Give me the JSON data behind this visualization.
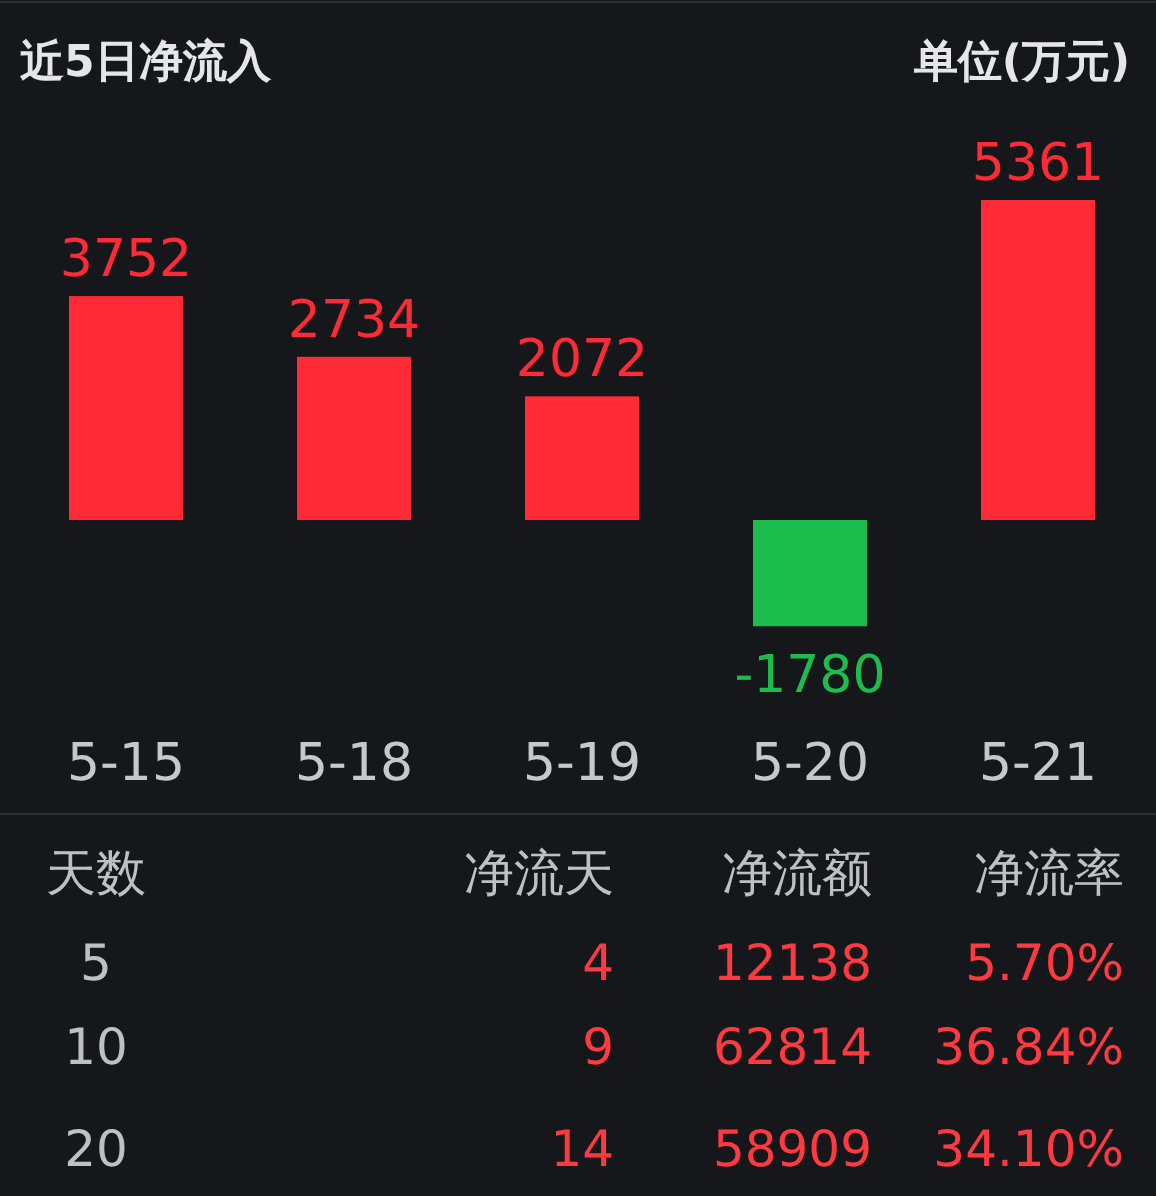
{
  "chart_data": {
    "type": "bar",
    "title": "近5日净流入",
    "ylabel": "单位(万元)",
    "categories": [
      "5-15",
      "5-18",
      "5-19",
      "5-20",
      "5-21"
    ],
    "values": [
      3752,
      2734,
      2072,
      -1780,
      5361
    ],
    "colors": [
      "#fe2a36",
      "#fe2a36",
      "#fe2a36",
      "#1cbd4d",
      "#fe2a36"
    ],
    "data_labels": true,
    "annotations": [
      "天数",
      "净流天",
      "净流额",
      "净流率",
      "5",
      "4",
      "12138",
      "5.70%",
      "10",
      "9",
      "62814",
      "36.84%",
      "20",
      "14",
      "58909",
      "34.10%"
    ]
  }
}
